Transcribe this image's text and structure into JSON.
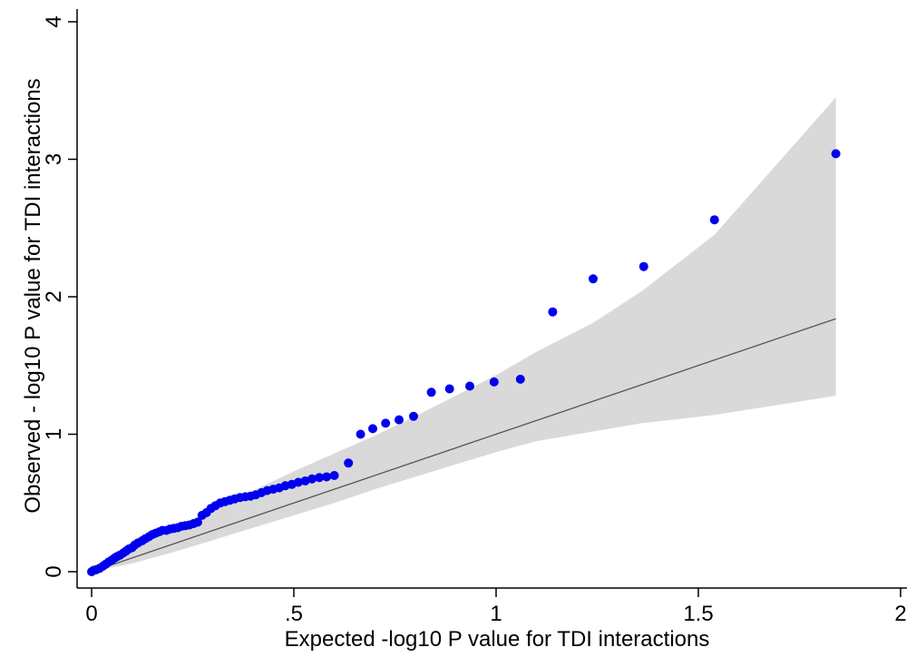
{
  "chart_data": {
    "type": "scatter",
    "title": "",
    "xlabel": "Expected -log10 P value for TDI interactions",
    "ylabel": "Observed - log10 P value for TDI interactions",
    "xlim": [
      0,
      2
    ],
    "ylim": [
      0,
      4
    ],
    "x_ticks": [
      {
        "value": 0,
        "label": "0"
      },
      {
        "value": 0.5,
        "label": ".5"
      },
      {
        "value": 1,
        "label": "1"
      },
      {
        "value": 1.5,
        "label": "1.5"
      },
      {
        "value": 2,
        "label": "2"
      }
    ],
    "y_ticks": [
      {
        "value": 0,
        "label": "0"
      },
      {
        "value": 1,
        "label": "1"
      },
      {
        "value": 2,
        "label": "2"
      },
      {
        "value": 3,
        "label": "3"
      },
      {
        "value": 4,
        "label": "4"
      }
    ],
    "grid": false,
    "colors": {
      "points": "#0000ee",
      "band": "#d9d9d9",
      "reference_line": "#555555"
    },
    "reference_line": {
      "x": [
        0,
        1.84
      ],
      "y": [
        0,
        1.84
      ]
    },
    "confidence_band": {
      "x": [
        0,
        0.1,
        0.2,
        0.3,
        0.4,
        0.5,
        0.6,
        0.7,
        0.8,
        0.9,
        1.0,
        1.1,
        1.24,
        1.36,
        1.54,
        1.84
      ],
      "upper": [
        0.0,
        0.16,
        0.31,
        0.45,
        0.59,
        0.73,
        0.86,
        0.99,
        1.13,
        1.28,
        1.43,
        1.6,
        1.81,
        2.04,
        2.45,
        3.45
      ],
      "lower": [
        0.0,
        0.06,
        0.14,
        0.23,
        0.32,
        0.41,
        0.5,
        0.6,
        0.69,
        0.78,
        0.87,
        0.95,
        1.02,
        1.08,
        1.14,
        1.28
      ]
    },
    "series": [
      {
        "x": [
          0.0,
          0.005,
          0.012,
          0.02,
          0.028,
          0.035,
          0.042,
          0.05,
          0.057,
          0.063,
          0.07,
          0.078,
          0.085,
          0.092,
          0.1,
          0.107,
          0.115,
          0.125,
          0.133,
          0.142,
          0.15,
          0.158,
          0.167,
          0.175,
          0.185,
          0.194,
          0.203,
          0.213,
          0.222,
          0.232,
          0.242,
          0.252,
          0.262,
          0.273,
          0.284,
          0.295,
          0.306,
          0.318,
          0.33,
          0.342,
          0.354,
          0.367,
          0.38,
          0.393,
          0.406,
          0.42,
          0.434,
          0.449,
          0.464,
          0.479,
          0.495,
          0.511,
          0.528,
          0.545,
          0.563,
          0.581,
          0.6,
          0.635,
          0.665,
          0.695,
          0.727,
          0.76,
          0.796,
          0.84,
          0.885,
          0.935,
          0.995,
          1.06,
          1.14,
          1.24,
          1.365,
          1.54,
          1.84
        ],
        "y": [
          0.0,
          0.01,
          0.015,
          0.025,
          0.04,
          0.055,
          0.07,
          0.085,
          0.1,
          0.11,
          0.12,
          0.135,
          0.15,
          0.165,
          0.175,
          0.195,
          0.21,
          0.225,
          0.24,
          0.255,
          0.27,
          0.28,
          0.29,
          0.3,
          0.3,
          0.31,
          0.315,
          0.32,
          0.33,
          0.335,
          0.34,
          0.35,
          0.36,
          0.41,
          0.43,
          0.46,
          0.48,
          0.5,
          0.51,
          0.52,
          0.53,
          0.54,
          0.545,
          0.55,
          0.56,
          0.575,
          0.59,
          0.6,
          0.61,
          0.625,
          0.635,
          0.65,
          0.66,
          0.675,
          0.685,
          0.69,
          0.7,
          0.79,
          1.0,
          1.04,
          1.08,
          1.105,
          1.13,
          1.305,
          1.33,
          1.35,
          1.38,
          1.4,
          1.89,
          2.13,
          2.22,
          2.56,
          3.04
        ]
      }
    ]
  }
}
